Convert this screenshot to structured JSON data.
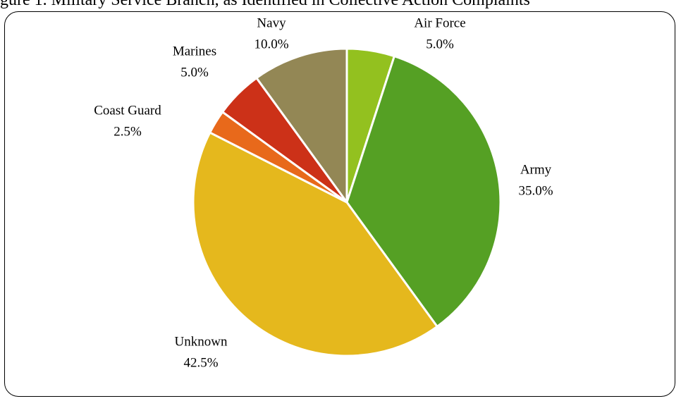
{
  "header_partial_text": "gure 1. Military Service Branch, as Identified in Collective Action Complaints",
  "chart_data": {
    "type": "pie",
    "slices": [
      {
        "label": "Air Force",
        "value": 5.0,
        "display": "5.0%",
        "color": "#93c11f"
      },
      {
        "label": "Army",
        "value": 35.0,
        "display": "35.0%",
        "color": "#55a024"
      },
      {
        "label": "Unknown",
        "value": 42.5,
        "display": "42.5%",
        "color": "#e5b81d"
      },
      {
        "label": "Coast Guard",
        "value": 2.5,
        "display": "2.5%",
        "color": "#e8691b"
      },
      {
        "label": "Marines",
        "value": 5.0,
        "display": "5.0%",
        "color": "#cc3118"
      },
      {
        "label": "Navy",
        "value": 10.0,
        "display": "10.0%",
        "color": "#938755"
      }
    ],
    "start_angle_deg": 0,
    "direction": "clockwise"
  }
}
